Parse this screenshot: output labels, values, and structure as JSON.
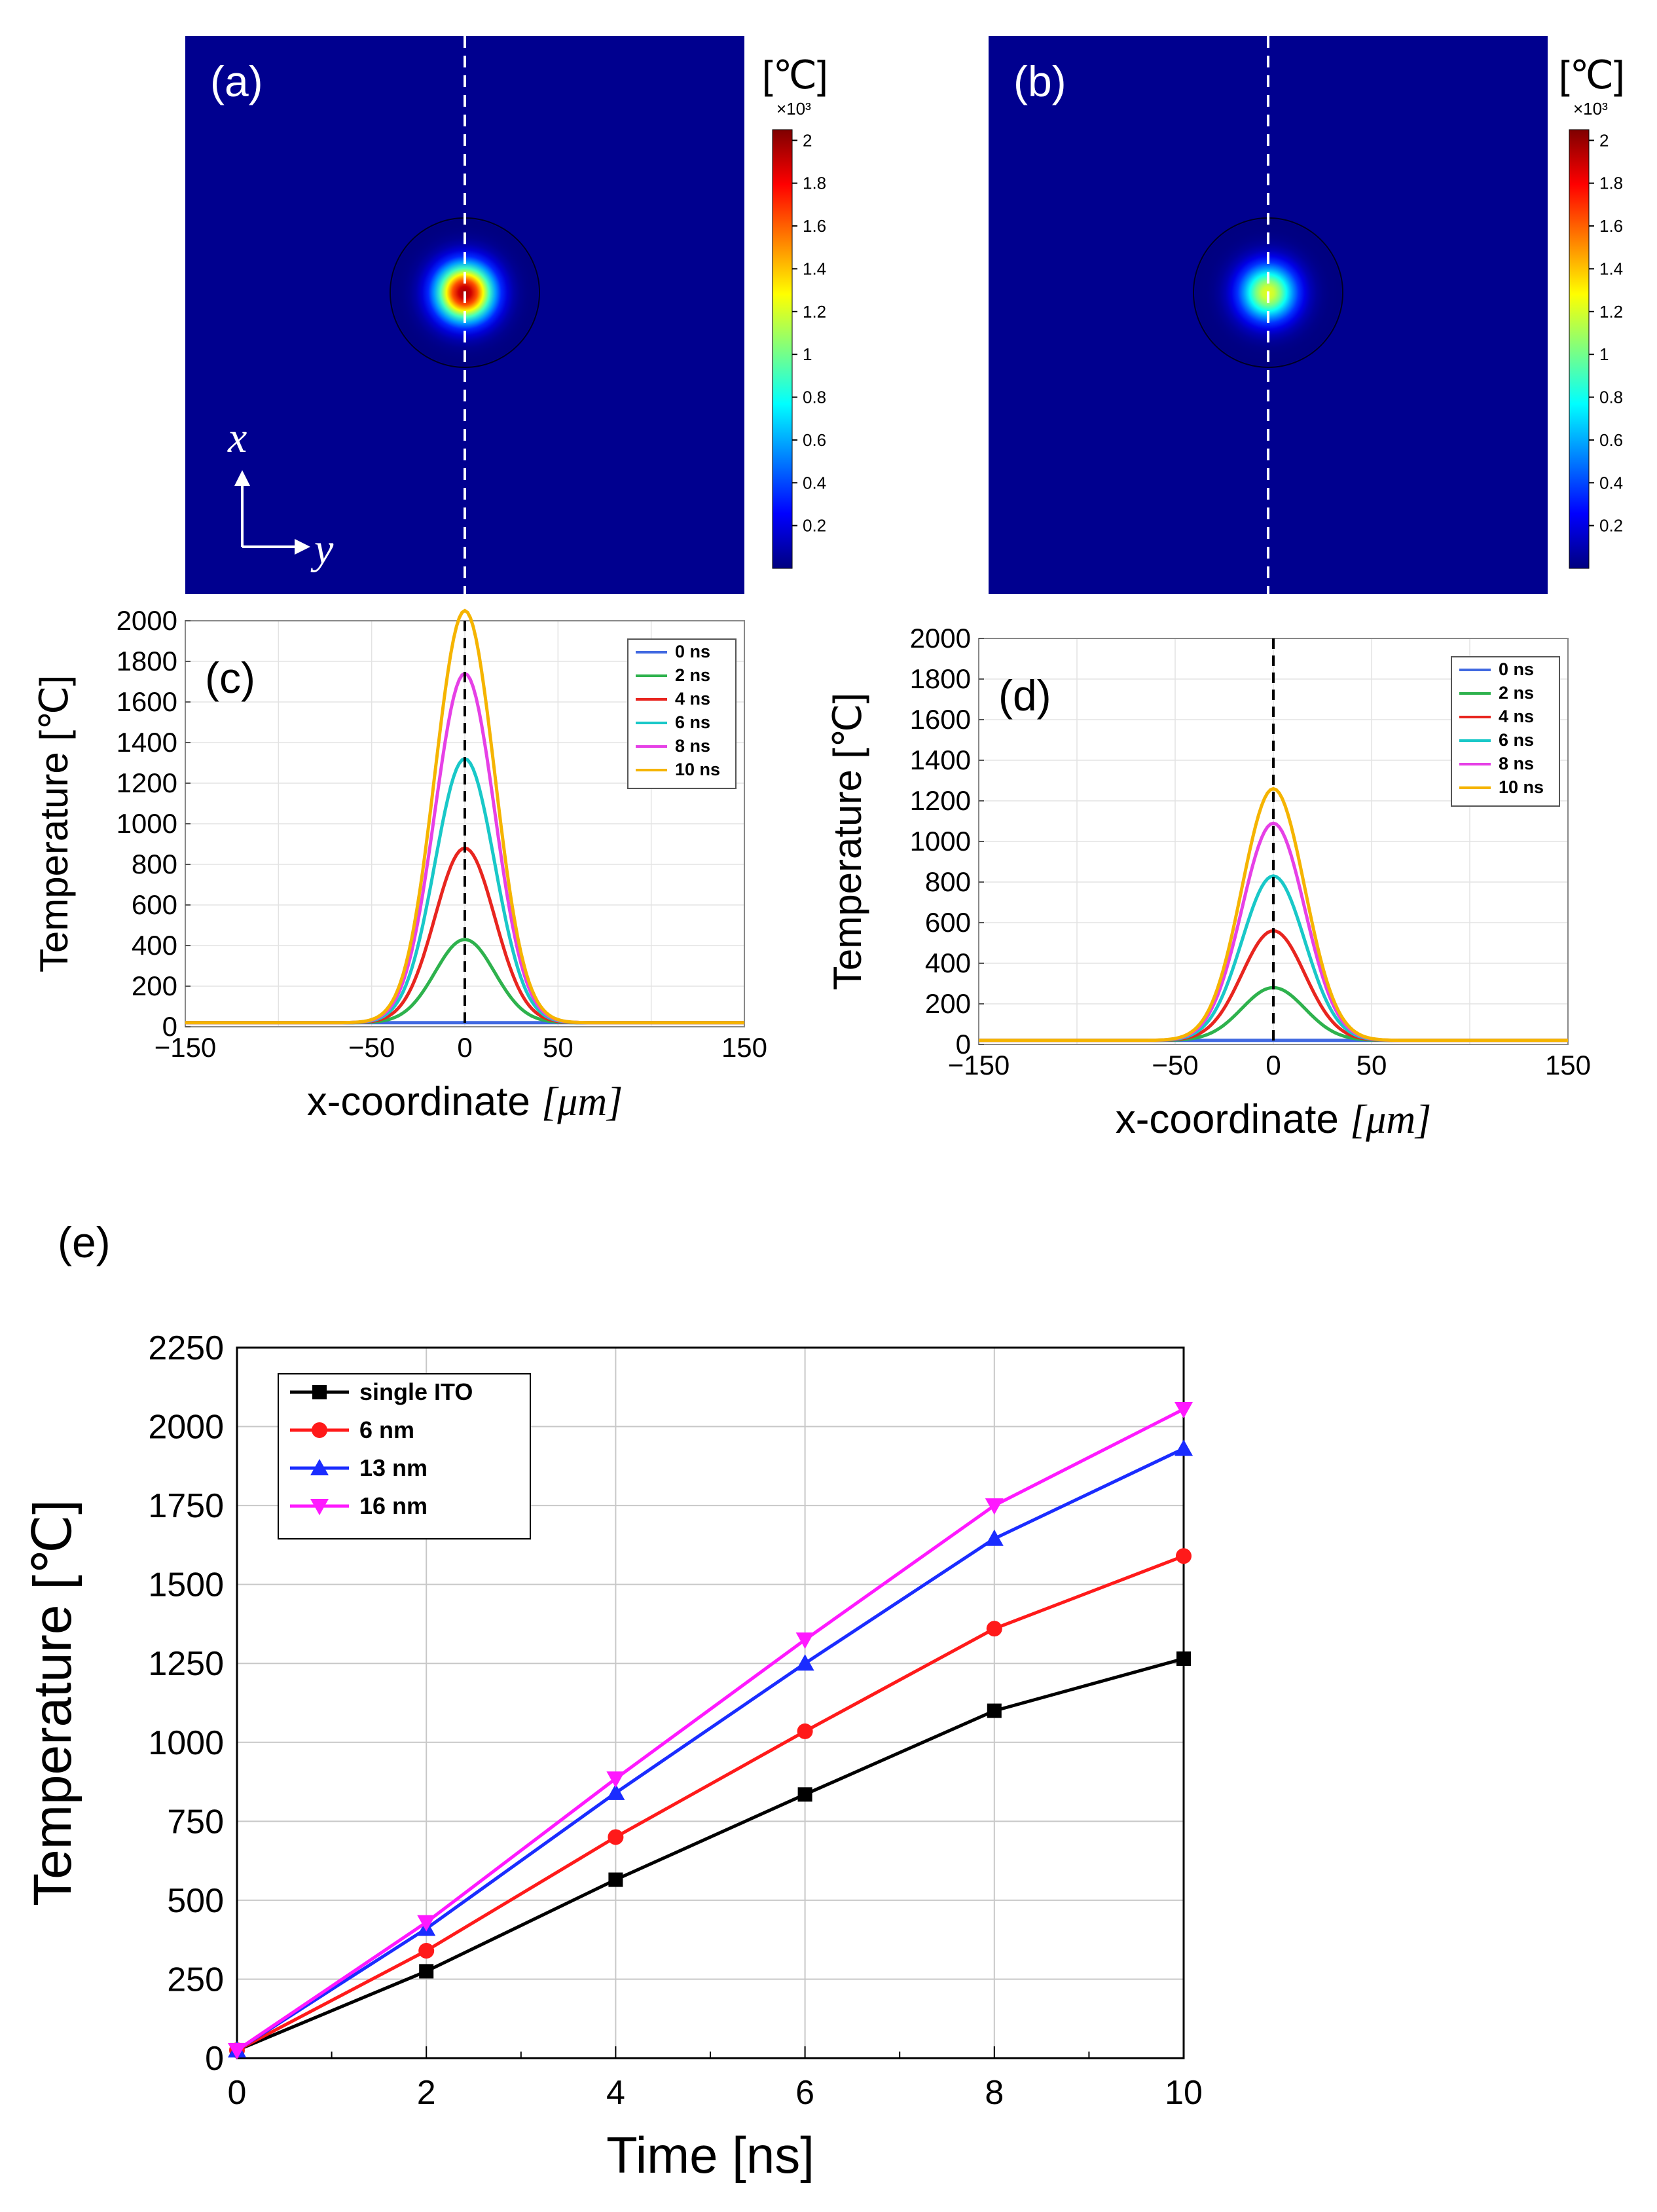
{
  "colors": {
    "heatmap_bg": "#00008f",
    "jet": [
      "#00007f",
      "#0000ff",
      "#007fff",
      "#00ffff",
      "#7fff7f",
      "#ffff00",
      "#ff7f00",
      "#ff0000",
      "#7f0000"
    ],
    "ns_series": [
      "#4169e1",
      "#2eb24d",
      "#e8251f",
      "#19c8c8",
      "#e640e6",
      "#f5b400"
    ],
    "e_series": [
      "#000000",
      "#ff1a1a",
      "#1a2cff",
      "#ff19ff"
    ]
  },
  "panels": {
    "a": {
      "label": "(a)",
      "unit": "[℃]",
      "multiplier": "×10³",
      "colorbar_ticks": [
        "2",
        "1.8",
        "1.6",
        "1.4",
        "1.2",
        "1",
        "0.8",
        "0.6",
        "0.4",
        "0.2"
      ],
      "peak_value": 2.05,
      "axis_x": "x",
      "axis_y": "y"
    },
    "b": {
      "label": "(b)",
      "unit": "[℃]",
      "multiplier": "×10³",
      "colorbar_ticks": [
        "2",
        "1.8",
        "1.6",
        "1.4",
        "1.2",
        "1",
        "0.8",
        "0.6",
        "0.4",
        "0.2"
      ],
      "peak_value": 1.27
    }
  },
  "chart_data": [
    {
      "id": "c",
      "type": "line",
      "title": "(c)",
      "xlabel": "x-coordinate",
      "xlabel_unit": "[μm]",
      "ylabel": "Temperature [℃]",
      "xlim": [
        -150,
        150
      ],
      "ylim": [
        0,
        2000
      ],
      "xticks": [
        "-150",
        "-50",
        "0",
        "50",
        "150"
      ],
      "yticks": [
        "0",
        "200",
        "400",
        "600",
        "800",
        "1000",
        "1200",
        "1400",
        "1600",
        "1800",
        "2000"
      ],
      "gaussian_sigma_um": 16,
      "baseline": 20,
      "series": [
        {
          "name": "0 ns",
          "peak": 20
        },
        {
          "name": "2 ns",
          "peak": 430
        },
        {
          "name": "4 ns",
          "peak": 880
        },
        {
          "name": "6 ns",
          "peak": 1320
        },
        {
          "name": "8 ns",
          "peak": 1740
        },
        {
          "name": "10 ns",
          "peak": 2050
        }
      ]
    },
    {
      "id": "d",
      "type": "line",
      "title": "(d)",
      "xlabel": "x-coordinate",
      "xlabel_unit": "[μm]",
      "ylabel": "Temperature [℃]",
      "xlim": [
        -150,
        150
      ],
      "ylim": [
        0,
        2000
      ],
      "xticks": [
        "-150",
        "-50",
        "0",
        "50",
        "150"
      ],
      "yticks": [
        "0",
        "200",
        "400",
        "600",
        "800",
        "1000",
        "1200",
        "1400",
        "1600",
        "1800",
        "2000"
      ],
      "gaussian_sigma_um": 16,
      "baseline": 20,
      "series": [
        {
          "name": "0 ns",
          "peak": 20
        },
        {
          "name": "2 ns",
          "peak": 280
        },
        {
          "name": "4 ns",
          "peak": 560
        },
        {
          "name": "6 ns",
          "peak": 830
        },
        {
          "name": "8 ns",
          "peak": 1090
        },
        {
          "name": "10 ns",
          "peak": 1260
        }
      ]
    },
    {
      "id": "e",
      "type": "line",
      "title": "(e)",
      "xlabel": "Time [ns]",
      "ylabel": "Temperature [℃]",
      "xlim": [
        0,
        10
      ],
      "ylim": [
        0,
        2250
      ],
      "xticks": [
        "0",
        "2",
        "4",
        "6",
        "8",
        "10"
      ],
      "yticks": [
        "0",
        "250",
        "500",
        "750",
        "1000",
        "1250",
        "1500",
        "1750",
        "2000",
        "2250"
      ],
      "x": [
        0,
        2,
        4,
        6,
        8,
        10
      ],
      "series": [
        {
          "name": "single ITO",
          "marker": "square",
          "values": [
            25,
            275,
            565,
            835,
            1100,
            1265
          ]
        },
        {
          "name": "6 nm",
          "marker": "circle",
          "values": [
            25,
            340,
            700,
            1035,
            1360,
            1590
          ]
        },
        {
          "name": "13 nm",
          "marker": "triangle-up",
          "values": [
            25,
            410,
            840,
            1250,
            1645,
            1930
          ]
        },
        {
          "name": "16 nm",
          "marker": "triangle-down",
          "values": [
            25,
            430,
            885,
            1325,
            1750,
            2055
          ]
        }
      ]
    }
  ]
}
